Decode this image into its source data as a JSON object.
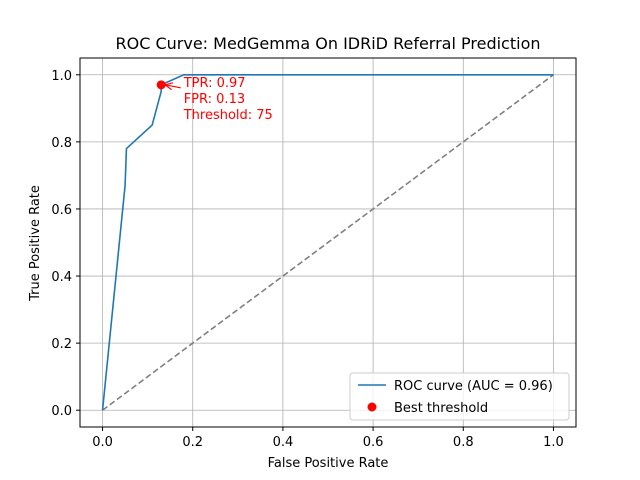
{
  "chart_data": {
    "type": "line",
    "title": "ROC Curve: MedGemma On IDRiD Referral Prediction",
    "xlabel": "False Positive Rate",
    "ylabel": "True Positive Rate",
    "xlim": [
      -0.05,
      1.05
    ],
    "ylim": [
      -0.05,
      1.05
    ],
    "x_ticks": [
      0.0,
      0.2,
      0.4,
      0.6,
      0.8,
      1.0
    ],
    "y_ticks": [
      0.0,
      0.2,
      0.4,
      0.6,
      0.8,
      1.0
    ],
    "x_tick_labels": [
      "0.0",
      "0.2",
      "0.4",
      "0.6",
      "0.8",
      "1.0"
    ],
    "y_tick_labels": [
      "0.0",
      "0.2",
      "0.4",
      "0.6",
      "0.8",
      "1.0"
    ],
    "grid": true,
    "legend_position": "lower-right",
    "series": [
      {
        "name": "ROC curve (AUC = 0.96)",
        "kind": "line",
        "color": "#1f77b4",
        "x": [
          0.0,
          0.05,
          0.05,
          0.053,
          0.053,
          0.11,
          0.13,
          0.13,
          0.18,
          1.0
        ],
        "y": [
          0.0,
          0.67,
          0.67,
          0.78,
          0.78,
          0.85,
          0.95,
          0.97,
          1.0,
          1.0
        ]
      },
      {
        "name": "chance-diagonal",
        "kind": "dashed",
        "color": "#808080",
        "x": [
          0.0,
          1.0
        ],
        "y": [
          0.0,
          1.0
        ]
      },
      {
        "name": "Best threshold",
        "kind": "scatter",
        "color": "#ff0000",
        "x": [
          0.13
        ],
        "y": [
          0.97
        ]
      }
    ],
    "annotation": {
      "lines": [
        "TPR: 0.97",
        "FPR: 0.13",
        "Threshold: 75"
      ],
      "point": [
        0.13,
        0.97
      ],
      "text_anchor": [
        0.18,
        0.97
      ],
      "color": "#ff0000"
    },
    "legend": {
      "entries": [
        "ROC curve (AUC = 0.96)",
        "Best threshold"
      ]
    }
  }
}
